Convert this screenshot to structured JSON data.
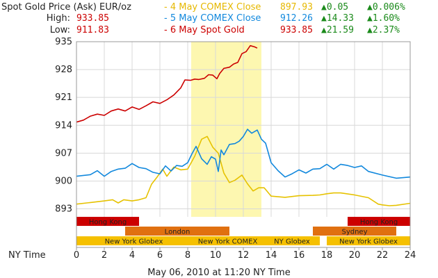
{
  "header": {
    "title": "Spot Gold Price (Ask) EUR/oz",
    "high_label": "High:",
    "high_value": "933.85",
    "low_label": "Low:",
    "low_value": "911.83",
    "rows": [
      {
        "label": "- 4 May COMEX Close",
        "value": "897.93",
        "change": "▲0.05",
        "pct": "▲0.006%"
      },
      {
        "label": "- 5 May COMEX Close",
        "value": "912.26",
        "change": "▲14.33",
        "pct": "▲1.60%"
      },
      {
        "label": "- 6 May Spot Gold",
        "value": "933.85",
        "change": "▲21.59",
        "pct": "▲2.37%"
      }
    ]
  },
  "colors": {
    "may4": "#e6c200",
    "may5": "#1188dd",
    "may6": "#cc0000",
    "highlight": "#fdf7b0",
    "hongkong": "#cc0000",
    "london": "#e07010",
    "sydney": "#e07010",
    "newyork": "#f5c000"
  },
  "chart_data": {
    "type": "line",
    "xlabel": "NY Time",
    "timestamp": "May 06, 2010 at 11:20 NY Time",
    "x_ticks": [
      "0",
      "2",
      "4",
      "6",
      "8",
      "10",
      "12",
      "14",
      "16",
      "18",
      "20",
      "22",
      "24"
    ],
    "y_ticks": [
      "935",
      "928",
      "921",
      "914",
      "907",
      "900",
      "893"
    ],
    "xlim": [
      0,
      24
    ],
    "ylim": [
      891,
      935
    ],
    "highlight": {
      "from": 8.25,
      "to": 13.3
    },
    "grid": true,
    "series": [
      {
        "name": "- 4 May COMEX Close",
        "color_key": "may4",
        "points": [
          [
            0,
            894.2
          ],
          [
            1,
            894.6
          ],
          [
            2,
            895.0
          ],
          [
            2.6,
            895.3
          ],
          [
            3,
            894.5
          ],
          [
            3.4,
            895.3
          ],
          [
            4,
            895.0
          ],
          [
            4.5,
            895.3
          ],
          [
            5,
            895.8
          ],
          [
            5.4,
            899.2
          ],
          [
            5.8,
            901.0
          ],
          [
            6.2,
            903.0
          ],
          [
            6.5,
            901.2
          ],
          [
            7,
            903.5
          ],
          [
            7.5,
            902.8
          ],
          [
            8,
            903.0
          ],
          [
            8.5,
            906.2
          ],
          [
            9,
            910.5
          ],
          [
            9.4,
            911.2
          ],
          [
            9.8,
            908.5
          ],
          [
            10.2,
            907.0
          ],
          [
            10.6,
            902.0
          ],
          [
            11,
            899.6
          ],
          [
            11.4,
            900.2
          ],
          [
            11.9,
            901.5
          ],
          [
            12.3,
            899.3
          ],
          [
            12.7,
            897.5
          ],
          [
            13.1,
            898.3
          ],
          [
            13.5,
            898.3
          ],
          [
            14,
            896.2
          ],
          [
            15,
            895.9
          ],
          [
            16,
            896.3
          ],
          [
            17,
            896.4
          ],
          [
            17.5,
            896.5
          ],
          [
            18,
            896.8
          ],
          [
            18.5,
            897.0
          ],
          [
            19,
            897.0
          ],
          [
            20,
            896.5
          ],
          [
            21,
            895.8
          ],
          [
            21.7,
            894.2
          ],
          [
            22,
            894.0
          ],
          [
            22.5,
            893.8
          ],
          [
            23,
            893.9
          ],
          [
            24,
            894.4
          ]
        ]
      },
      {
        "name": "- 5 May COMEX Close",
        "color_key": "may5",
        "points": [
          [
            0,
            901.2
          ],
          [
            1,
            901.6
          ],
          [
            1.5,
            902.6
          ],
          [
            2,
            901.2
          ],
          [
            2.5,
            902.4
          ],
          [
            3,
            903.0
          ],
          [
            3.5,
            903.2
          ],
          [
            4,
            904.4
          ],
          [
            4.5,
            903.4
          ],
          [
            5,
            903.1
          ],
          [
            5.5,
            902.2
          ],
          [
            6,
            901.8
          ],
          [
            6.4,
            903.8
          ],
          [
            6.8,
            902.5
          ],
          [
            7.2,
            903.9
          ],
          [
            7.6,
            903.7
          ],
          [
            8,
            904.6
          ],
          [
            8.3,
            906.8
          ],
          [
            8.6,
            908.7
          ],
          [
            9,
            905.6
          ],
          [
            9.4,
            904.2
          ],
          [
            9.7,
            906.1
          ],
          [
            10,
            905.5
          ],
          [
            10.2,
            902.4
          ],
          [
            10.4,
            907.8
          ],
          [
            10.6,
            906.6
          ],
          [
            11,
            909.2
          ],
          [
            11.4,
            909.4
          ],
          [
            11.7,
            910.0
          ],
          [
            12,
            911.2
          ],
          [
            12.3,
            913.0
          ],
          [
            12.6,
            912.0
          ],
          [
            13,
            912.8
          ],
          [
            13.3,
            910.5
          ],
          [
            13.6,
            909.5
          ],
          [
            14,
            904.6
          ],
          [
            14.5,
            902.6
          ],
          [
            15,
            901.0
          ],
          [
            15.5,
            901.8
          ],
          [
            16,
            902.8
          ],
          [
            16.5,
            902.0
          ],
          [
            17,
            903.0
          ],
          [
            17.5,
            903.1
          ],
          [
            18,
            904.2
          ],
          [
            18.5,
            903.0
          ],
          [
            19,
            904.2
          ],
          [
            19.5,
            903.9
          ],
          [
            20,
            903.4
          ],
          [
            20.5,
            903.8
          ],
          [
            21,
            902.4
          ],
          [
            22,
            901.5
          ],
          [
            23,
            900.7
          ],
          [
            24,
            901.0
          ]
        ]
      },
      {
        "name": "- 6 May Spot Gold",
        "color_key": "may6",
        "points": [
          [
            0,
            914.8
          ],
          [
            0.5,
            915.3
          ],
          [
            1,
            916.3
          ],
          [
            1.5,
            916.8
          ],
          [
            2,
            916.5
          ],
          [
            2.5,
            917.6
          ],
          [
            3,
            918.1
          ],
          [
            3.5,
            917.6
          ],
          [
            4,
            918.6
          ],
          [
            4.5,
            918.0
          ],
          [
            5,
            918.9
          ],
          [
            5.5,
            919.9
          ],
          [
            6,
            919.5
          ],
          [
            6.5,
            920.4
          ],
          [
            7,
            921.6
          ],
          [
            7.5,
            923.4
          ],
          [
            7.8,
            925.4
          ],
          [
            8.2,
            925.3
          ],
          [
            8.5,
            925.6
          ],
          [
            8.8,
            925.5
          ],
          [
            9.2,
            925.8
          ],
          [
            9.5,
            926.7
          ],
          [
            9.8,
            926.6
          ],
          [
            10.1,
            925.7
          ],
          [
            10.3,
            927.0
          ],
          [
            10.6,
            928.3
          ],
          [
            11,
            928.6
          ],
          [
            11.3,
            929.4
          ],
          [
            11.6,
            929.8
          ],
          [
            11.9,
            932.0
          ],
          [
            12.2,
            932.5
          ],
          [
            12.5,
            934.0
          ],
          [
            12.8,
            933.7
          ],
          [
            13.0,
            933.4
          ]
        ]
      }
    ],
    "sessions": [
      {
        "name": "Hong Kong",
        "row": 0,
        "from": 0,
        "to": 4.5,
        "color_key": "hongkong"
      },
      {
        "name": "Hong Kong",
        "row": 0,
        "from": 19.5,
        "to": 24,
        "color_key": "hongkong"
      },
      {
        "name": "London",
        "row": 1,
        "from": 3.5,
        "to": 11,
        "color_key": "london"
      },
      {
        "name": "Sydney",
        "row": 1,
        "from": 17,
        "to": 23,
        "color_key": "sydney"
      },
      {
        "name": "New York Globex",
        "row": 2,
        "from": 0,
        "to": 8.25,
        "color_key": "newyork"
      },
      {
        "name": "New York COMEX",
        "row": 2,
        "from": 8.25,
        "to": 13.5,
        "color_key": "newyork"
      },
      {
        "name": "NY Globex",
        "row": 2,
        "from": 13.5,
        "to": 17.5,
        "color_key": "newyork"
      },
      {
        "name": "New York Globex",
        "row": 2,
        "from": 18,
        "to": 24,
        "color_key": "newyork"
      }
    ]
  }
}
